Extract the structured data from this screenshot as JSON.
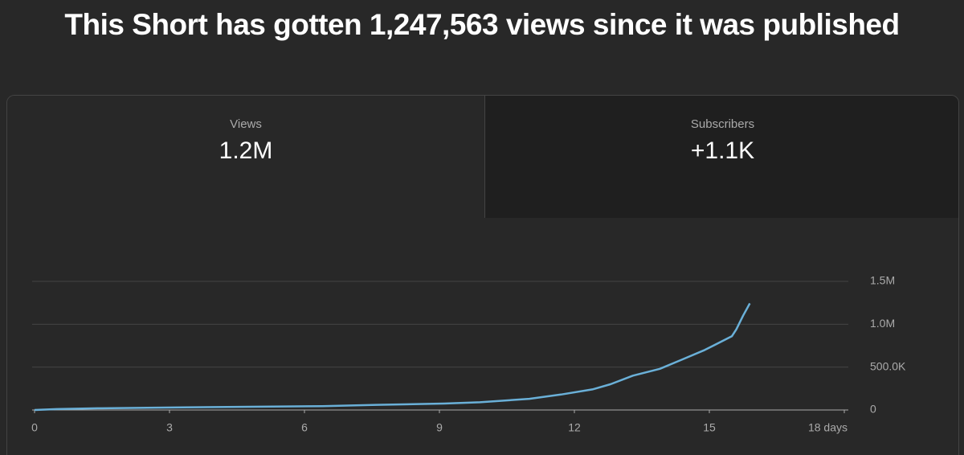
{
  "header": {
    "title": "This Short has gotten 1,247,563 views since it was published"
  },
  "cards": [
    {
      "label": "Views",
      "value": "1.2M"
    },
    {
      "label": "Subscribers",
      "value": "+1.1K"
    }
  ],
  "chart_data": {
    "type": "line",
    "x": [
      0,
      0.5,
      1.4,
      3.3,
      6.4,
      7.6,
      9.1,
      9.9,
      11,
      11.7,
      12.4,
      12.8,
      13.3,
      13.9,
      14.4,
      14.9,
      15.5,
      15.6,
      15.75,
      15.9
    ],
    "values": [
      0,
      10000,
      20000,
      30000,
      45000,
      60000,
      75000,
      90000,
      130000,
      180000,
      240000,
      300000,
      400000,
      480000,
      590000,
      700000,
      860000,
      940000,
      1100000,
      1243000
    ],
    "color": "#6ab0d8",
    "xlim": [
      0,
      18
    ],
    "xticks": [
      0,
      3,
      6,
      9,
      12,
      15,
      {
        "value": 18,
        "label": "18 days"
      }
    ],
    "ylim": [
      0,
      1500000
    ],
    "yticks": [
      0,
      {
        "value": 500000,
        "label": "500.0K"
      },
      {
        "value": 1000000,
        "label": "1.0M"
      },
      {
        "value": 1500000,
        "label": "1.5M"
      }
    ],
    "grid": true
  }
}
